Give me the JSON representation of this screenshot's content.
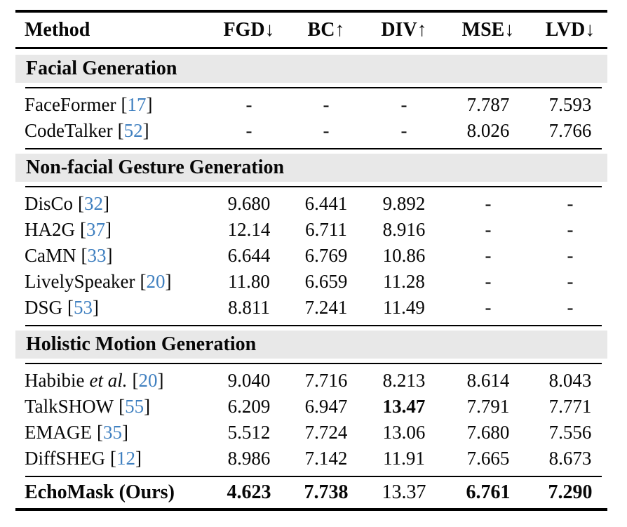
{
  "colors": {
    "citation_blue": "#4080c0",
    "section_band_bg": "#e8e8e8",
    "text": "#070707"
  },
  "citation": {
    "open": "[",
    "close": "]"
  },
  "header": {
    "method_label": "Method",
    "columns": [
      {
        "label": "FGD",
        "arrow": "↓"
      },
      {
        "label": "BC",
        "arrow": "↑"
      },
      {
        "label": "DIV",
        "arrow": "↑"
      },
      {
        "label": "MSE",
        "arrow": "↓"
      },
      {
        "label": "LVD",
        "arrow": "↓"
      }
    ]
  },
  "sections": [
    {
      "title": "Facial Generation",
      "rows": [
        {
          "method": "FaceFormer",
          "cite": "17",
          "values": [
            "-",
            "-",
            "-",
            "7.787",
            "7.593"
          ]
        },
        {
          "method": "CodeTalker",
          "cite": "52",
          "values": [
            "-",
            "-",
            "-",
            "8.026",
            "7.766"
          ]
        }
      ]
    },
    {
      "title": "Non-facial Gesture Generation",
      "rows": [
        {
          "method": "DisCo",
          "cite": "32",
          "values": [
            "9.680",
            "6.441",
            "9.892",
            "-",
            "-"
          ]
        },
        {
          "method": "HA2G",
          "cite": "37",
          "values": [
            "12.14",
            "6.711",
            "8.916",
            "-",
            "-"
          ]
        },
        {
          "method": "CaMN",
          "cite": "33",
          "values": [
            "6.644",
            "6.769",
            "10.86",
            "-",
            "-"
          ]
        },
        {
          "method": "LivelySpeaker",
          "cite": "20",
          "values": [
            "11.80",
            "6.659",
            "11.28",
            "-",
            "-"
          ]
        },
        {
          "method": "DSG",
          "cite": "53",
          "values": [
            "8.811",
            "7.241",
            "11.49",
            "-",
            "-"
          ]
        }
      ]
    },
    {
      "title": "Holistic Motion Generation",
      "rows": [
        {
          "method": "Habibie",
          "method_italic": "et al.",
          "cite": "20",
          "values": [
            "9.040",
            "7.716",
            "8.213",
            "8.614",
            "8.043"
          ]
        },
        {
          "method": "TalkSHOW",
          "cite": "55",
          "values": [
            "6.209",
            "6.947",
            "13.47",
            "7.791",
            "7.771"
          ]
        },
        {
          "method": "EMAGE",
          "cite": "35",
          "values": [
            "5.512",
            "7.724",
            "13.06",
            "7.680",
            "7.556"
          ]
        },
        {
          "method": "DiffSHEG",
          "cite": "12",
          "values": [
            "8.986",
            "7.142",
            "11.91",
            "7.665",
            "8.673"
          ]
        }
      ]
    }
  ],
  "final_row": {
    "method": "EchoMask (Ours)",
    "values": [
      "4.623",
      "7.738",
      "13.37",
      "6.761",
      "7.290"
    ]
  }
}
